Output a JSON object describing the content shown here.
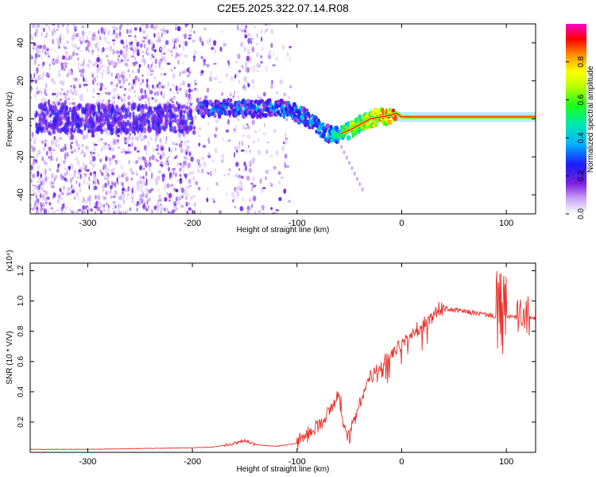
{
  "title": "C2E5.2025.322.07.14.R08",
  "chart_data": [
    {
      "type": "heatmap",
      "name": "spectrogram",
      "xlabel": "Height of straight line (km)",
      "ylabel": "Frequency (Hz)",
      "xlim": [
        -355,
        128
      ],
      "ylim": [
        -50,
        50
      ],
      "xticks": [
        -300,
        -200,
        -100,
        0,
        100
      ],
      "yticks": [
        -40,
        -20,
        0,
        20,
        40
      ],
      "colorbar": {
        "label": "Normalized spectral amplitude",
        "range": [
          0.0,
          1.0
        ],
        "ticks": [
          "0.0",
          "0.2",
          "0.4",
          "0.6",
          "0.8"
        ],
        "tick_values": [
          0.0,
          0.2,
          0.4,
          0.6,
          0.8
        ]
      },
      "ridge": {
        "x": [
          -195,
          -180,
          -160,
          -140,
          -120,
          -110,
          -100,
          -90,
          -80,
          -70,
          -62,
          -55,
          -50,
          -40,
          -30,
          -20,
          -10,
          -5,
          0,
          10,
          30,
          60,
          90,
          128
        ],
        "y": [
          6,
          5,
          6,
          5,
          6,
          5,
          3,
          0,
          -4,
          -8,
          -9,
          -7,
          -6,
          -3,
          0,
          1,
          2,
          3,
          1,
          1,
          1,
          1,
          1,
          1
        ],
        "amplitude": [
          0.25,
          0.3,
          0.32,
          0.28,
          0.3,
          0.35,
          0.38,
          0.42,
          0.4,
          0.38,
          0.5,
          0.55,
          0.6,
          0.7,
          0.78,
          0.85,
          0.88,
          0.9,
          0.95,
          0.97,
          0.97,
          0.97,
          0.97,
          0.97
        ]
      }
    },
    {
      "type": "line",
      "name": "snr",
      "xlabel": "Height of straight line (km)",
      "ylabel": "SNR (10 * V/V)",
      "scale_label": "(x10⁴)",
      "xlim": [
        -355,
        128
      ],
      "ylim": [
        0,
        1.25
      ],
      "xticks": [
        -300,
        -200,
        -100,
        0,
        100
      ],
      "yticks": [
        0.2,
        0.4,
        0.6,
        0.8,
        1.0,
        1.2
      ],
      "ytick_labels": [
        "0.2",
        "0.4",
        "0.6",
        "0.8",
        "1.0",
        "1.2"
      ],
      "color": "#e8302a",
      "series": [
        {
          "name": "SNR",
          "x": [
            -355,
            -300,
            -250,
            -200,
            -180,
            -160,
            -150,
            -140,
            -120,
            -100,
            -90,
            -80,
            -70,
            -65,
            -60,
            -55,
            -50,
            -45,
            -40,
            -35,
            -30,
            -20,
            -10,
            0,
            10,
            20,
            25,
            30,
            35,
            40,
            60,
            80,
            90,
            100,
            110,
            120,
            128
          ],
          "y": [
            0.02,
            0.02,
            0.025,
            0.03,
            0.035,
            0.06,
            0.08,
            0.05,
            0.04,
            0.06,
            0.12,
            0.18,
            0.26,
            0.32,
            0.4,
            0.14,
            0.1,
            0.2,
            0.33,
            0.42,
            0.5,
            0.58,
            0.65,
            0.71,
            0.78,
            0.84,
            0.88,
            0.91,
            0.94,
            0.95,
            0.93,
            0.91,
            0.9,
            0.9,
            0.89,
            0.89,
            0.88
          ]
        }
      ]
    }
  ]
}
